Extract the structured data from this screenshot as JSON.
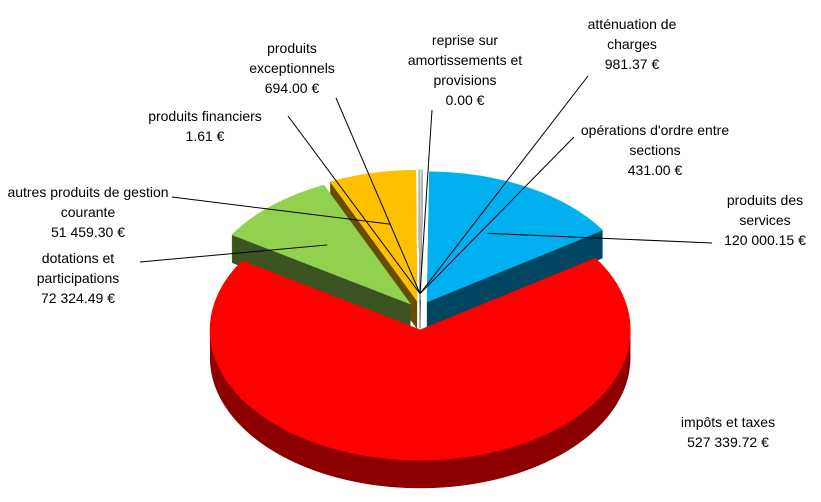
{
  "chart_data": {
    "type": "pie",
    "categories": [
      "atténuation de charges",
      "opérations d'ordre entre sections",
      "produits des services",
      "impôts et taxes",
      "dotations et participations",
      "autres produits de gestion courante",
      "produits financiers",
      "produits exceptionnels",
      "reprise sur amortissements et provisions"
    ],
    "values": [
      981.37,
      431.0,
      120000.15,
      527339.72,
      72324.49,
      51459.3,
      1.61,
      694.0,
      0.0
    ],
    "value_labels": [
      "981.37 €",
      "431.00 €",
      "120 000.15 €",
      "527 339.72 €",
      "72 324.49 €",
      "51 459.30 €",
      "1.61 €",
      "694.00 €",
      "0.00 €"
    ],
    "colors": [
      "#f2f2f2",
      "#e6e6e6",
      "#00b0f0",
      "#ff0000",
      "#92d050",
      "#ffc000",
      "#f2f2f2",
      "#ffffff",
      "#ffffff"
    ]
  }
}
